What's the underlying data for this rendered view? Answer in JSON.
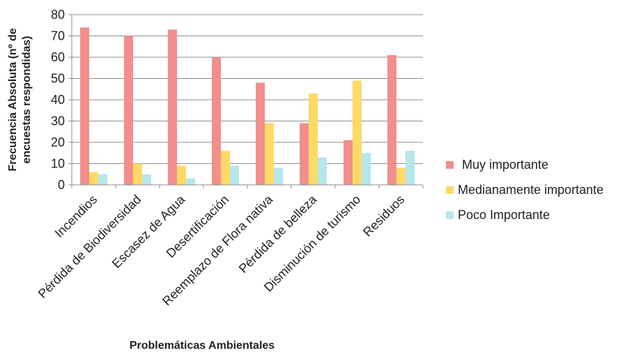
{
  "chart_data": {
    "type": "bar",
    "title": "",
    "xlabel": "Problemáticas Ambientales",
    "ylabel_line1": "Frecuencia Absoluta (nº de",
    "ylabel_line2": "encuestas respondidas)",
    "ylim": [
      0,
      80
    ],
    "yticks": [
      0,
      10,
      20,
      30,
      40,
      50,
      60,
      70,
      80
    ],
    "grid": true,
    "legend_position": "right",
    "categories": [
      "Incendios",
      "Pérdida de Biodiversidad",
      "Escasez de Agua",
      "Desertificación",
      "Reemplazo de Flora nativa",
      "Pérdida de belleza",
      "Disminución de turismo",
      "Residuos"
    ],
    "series": [
      {
        "name": "Muy importante",
        "color": "#F28E8C",
        "values": [
          74,
          70,
          73,
          60,
          48,
          29,
          21,
          61
        ]
      },
      {
        "name": "Medianamente importante",
        "color": "#FFD966",
        "values": [
          6,
          10,
          9,
          16,
          29,
          43,
          49,
          8
        ]
      },
      {
        "name": "Poco Importante",
        "color": "#B4E6EC",
        "values": [
          5,
          5,
          3,
          9,
          8,
          13,
          15,
          16
        ]
      }
    ]
  }
}
